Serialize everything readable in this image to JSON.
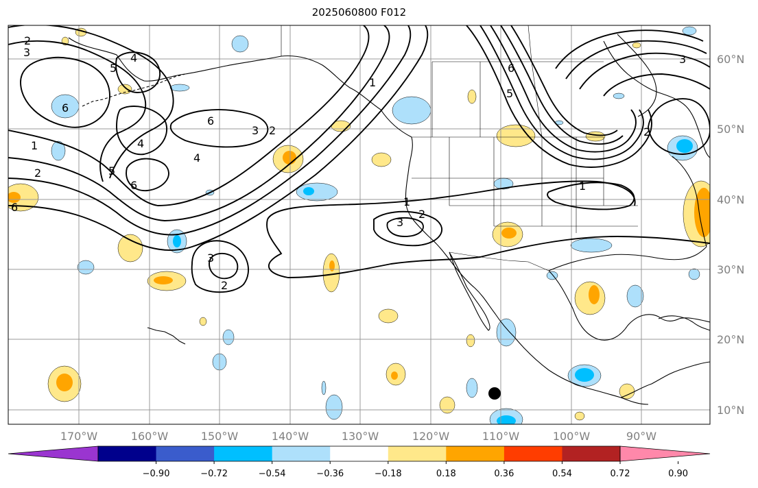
{
  "title": "2025060800 F012",
  "longitude_labels": [
    "170°W",
    "160°W",
    "150°W",
    "140°W",
    "130°W",
    "120°W",
    "110°W",
    "100°W",
    "90°W"
  ],
  "latitude_labels": [
    "10°N",
    "20°N",
    "30°N",
    "40°N",
    "50°N",
    "60°N"
  ],
  "colorbar": {
    "tick_labels": [
      "−0.90",
      "−0.72",
      "−0.54",
      "−0.36",
      "−0.18",
      "0.18",
      "0.36",
      "0.54",
      "0.72",
      "0.90"
    ],
    "colors": [
      "#9a35d0",
      "#00008c",
      "#3a5ccc",
      "#00bfff",
      "#aee0fb",
      "#ffffff",
      "#ffe88a",
      "#ffa500",
      "#ff3d00",
      "#b22222",
      "#ff88aa"
    ]
  },
  "contour_labels": [
    "2",
    "3",
    "4",
    "5",
    "6",
    "1",
    "2",
    "6",
    "4",
    "5",
    "6",
    "6",
    "3",
    "2",
    "1",
    "4",
    "6",
    "5",
    "3",
    "2",
    "1",
    "2",
    "3",
    "1",
    "3",
    "2"
  ],
  "colors": {
    "contour": "#000000",
    "grid": "#999999",
    "coast": "#000000",
    "marker": "#000000"
  }
}
